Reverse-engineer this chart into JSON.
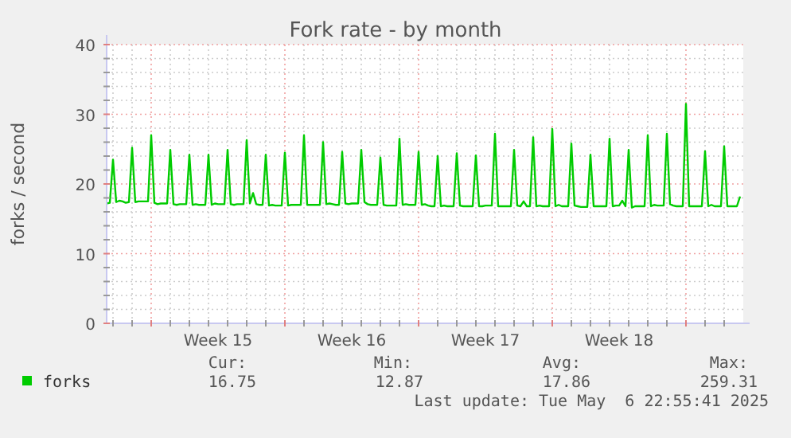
{
  "chart_data": {
    "type": "line",
    "title": "Fork rate - by month",
    "ylabel": "forks / second",
    "categories": [
      null,
      null,
      null,
      null,
      null,
      null,
      null,
      null,
      null,
      null,
      null,
      null,
      null,
      null,
      null,
      null,
      null,
      null,
      null,
      null,
      null,
      null,
      null,
      null,
      null,
      null,
      null,
      null,
      null,
      null,
      null,
      null,
      null,
      null,
      null,
      "Week 15",
      null,
      null,
      null,
      null,
      null,
      null,
      null,
      null,
      null,
      null,
      null,
      null,
      null,
      null,
      null,
      null,
      null,
      null,
      null,
      null,
      null,
      null,
      null,
      null,
      null,
      null,
      null,
      null,
      null,
      null,
      null,
      null,
      null,
      null,
      null,
      null,
      null,
      null,
      null,
      null,
      null,
      "Week 16",
      null,
      null,
      null,
      null,
      null,
      null,
      null,
      null,
      null,
      null,
      null,
      null,
      null,
      null,
      null,
      null,
      null,
      null,
      null,
      null,
      null,
      null,
      null,
      null,
      null,
      null,
      null,
      null,
      null,
      null,
      null,
      null,
      null,
      null,
      null,
      null,
      null,
      null,
      null,
      null,
      null,
      "Week 17",
      null,
      null,
      null,
      null,
      null,
      null,
      null,
      null,
      null,
      null,
      null,
      null,
      null,
      null,
      null,
      null,
      null,
      null,
      null,
      null,
      null,
      null,
      null,
      null,
      null,
      null,
      null,
      null,
      null,
      null,
      null,
      null,
      null,
      null,
      null,
      null,
      null,
      null,
      null,
      null,
      null,
      "Week 18",
      null,
      null,
      null,
      null,
      null,
      null,
      null,
      null,
      null,
      null,
      null,
      null,
      null,
      null,
      null,
      null,
      null,
      null,
      null,
      null,
      null,
      null,
      null,
      null,
      null,
      null,
      null,
      null,
      null,
      null,
      null,
      null,
      null,
      null,
      null,
      null,
      null,
      null
    ],
    "series": [
      {
        "name": "forks",
        "color": "#00cc00",
        "values": [
          17.2,
          17.3,
          23.5,
          17.4,
          17.6,
          17.5,
          17.3,
          17.4,
          25.2,
          17.4,
          17.5,
          17.5,
          17.5,
          17.5,
          27.0,
          17.3,
          17.1,
          17.2,
          17.2,
          17.2,
          24.9,
          17.1,
          17.0,
          17.1,
          17.1,
          17.1,
          24.2,
          17.0,
          17.1,
          17.0,
          17.0,
          17.0,
          24.2,
          17.0,
          17.2,
          17.1,
          17.1,
          17.1,
          24.9,
          17.1,
          17.0,
          17.1,
          17.1,
          17.1,
          26.3,
          17.2,
          18.7,
          17.1,
          17.0,
          17.0,
          24.2,
          16.9,
          17.0,
          16.9,
          16.9,
          16.9,
          24.5,
          16.9,
          17.0,
          17.0,
          17.0,
          17.0,
          27.0,
          17.0,
          17.0,
          17.0,
          17.0,
          17.0,
          26.0,
          17.1,
          17.2,
          17.1,
          17.0,
          17.0,
          24.6,
          17.2,
          17.1,
          17.2,
          17.2,
          17.2,
          24.9,
          17.4,
          17.1,
          17.0,
          17.0,
          17.0,
          23.8,
          17.0,
          16.9,
          16.9,
          16.9,
          16.9,
          26.5,
          17.0,
          17.1,
          17.0,
          17.0,
          17.0,
          24.6,
          17.0,
          17.1,
          16.9,
          16.8,
          16.8,
          24.0,
          16.8,
          16.9,
          16.8,
          16.8,
          16.8,
          24.4,
          16.9,
          16.8,
          16.8,
          16.8,
          16.8,
          24.1,
          16.8,
          16.8,
          16.9,
          16.9,
          16.9,
          27.2,
          16.8,
          16.8,
          16.8,
          16.8,
          16.8,
          24.9,
          16.9,
          16.8,
          17.5,
          16.8,
          16.8,
          26.7,
          16.8,
          16.9,
          16.8,
          16.8,
          16.8,
          27.9,
          16.8,
          17.0,
          16.8,
          16.8,
          16.8,
          25.8,
          16.9,
          16.8,
          16.7,
          16.7,
          16.7,
          24.2,
          16.8,
          16.8,
          16.8,
          16.8,
          16.8,
          26.5,
          16.8,
          16.9,
          16.9,
          17.6,
          16.8,
          24.9,
          16.6,
          16.8,
          16.8,
          16.8,
          16.8,
          27.0,
          16.8,
          17.0,
          16.9,
          16.9,
          16.9,
          27.2,
          17.1,
          16.9,
          16.8,
          16.8,
          16.8,
          31.5,
          16.8,
          16.8,
          16.8,
          16.8,
          16.8,
          24.7,
          16.8,
          17.0,
          16.8,
          16.8,
          16.8,
          25.4,
          16.8,
          16.8,
          16.8,
          16.8,
          18.2
        ]
      }
    ],
    "ylim": [
      0,
      40
    ],
    "yticks": [
      0,
      {
        "value": 2,
        "label": null
      },
      {
        "value": 4,
        "label": null
      },
      {
        "value": 6,
        "label": null
      },
      {
        "value": 8,
        "label": null
      },
      10,
      {
        "value": 12,
        "label": null
      },
      {
        "value": 14,
        "label": null
      },
      {
        "value": 16,
        "label": null
      },
      {
        "value": 18,
        "label": null
      },
      20,
      {
        "value": 22,
        "label": null
      },
      {
        "value": 24,
        "label": null
      },
      {
        "value": 26,
        "label": null
      },
      {
        "value": 28,
        "label": null
      },
      30,
      {
        "value": 32,
        "label": null
      },
      {
        "value": 34,
        "label": null
      },
      {
        "value": 36,
        "label": null
      },
      {
        "value": 38,
        "label": null
      },
      40
    ],
    "grid": true,
    "legend": "bottom",
    "marker": "none",
    "line_style": "solid",
    "annotations": [
      "Cur:",
      "Min:",
      "Avg:",
      "Max:",
      "16.75",
      "12.87",
      "17.86",
      "259.31",
      "Last update: Tue May  6 22:55:41 2025"
    ]
  }
}
